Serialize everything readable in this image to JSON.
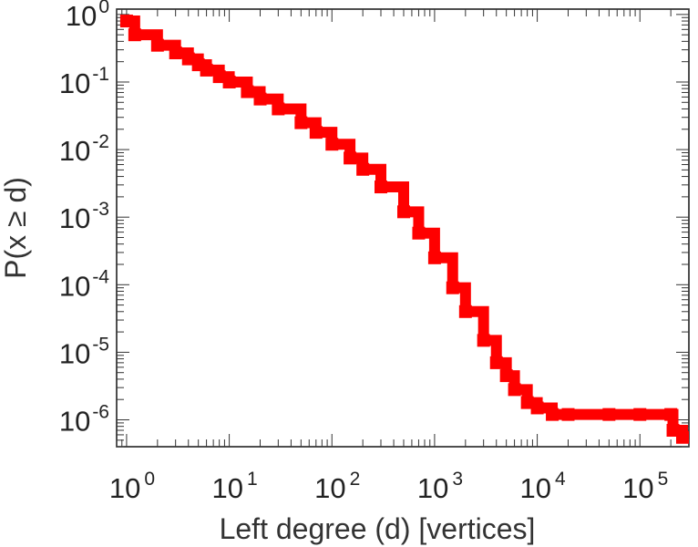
{
  "chart_data": {
    "type": "line",
    "xlabel": "Left degree (d) [vertices]",
    "ylabel": "P(x ≥ d)",
    "xscale": "log",
    "yscale": "log",
    "xlim": [
      0.8,
      300000
    ],
    "ylim": [
      4e-07,
      1.2
    ],
    "grid": false,
    "legend": "none",
    "line_color": "#ff0000",
    "marker": "square",
    "x_ticks": [
      {
        "base": "10",
        "exp": "0",
        "value": 1
      },
      {
        "base": "10",
        "exp": "1",
        "value": 10
      },
      {
        "base": "10",
        "exp": "2",
        "value": 100
      },
      {
        "base": "10",
        "exp": "3",
        "value": 1000
      },
      {
        "base": "10",
        "exp": "4",
        "value": 10000
      },
      {
        "base": "10",
        "exp": "5",
        "value": 100000
      }
    ],
    "y_ticks": [
      {
        "base": "10",
        "exp": "0",
        "value": 1
      },
      {
        "base": "10",
        "exp": "-1",
        "value": 0.1
      },
      {
        "base": "10",
        "exp": "-2",
        "value": 0.01
      },
      {
        "base": "10",
        "exp": "-3",
        "value": 0.001
      },
      {
        "base": "10",
        "exp": "-4",
        "value": 0.0001
      },
      {
        "base": "10",
        "exp": "-5",
        "value": 1e-05
      },
      {
        "base": "10",
        "exp": "-6",
        "value": 1e-06
      }
    ],
    "series": [
      {
        "x": [
          1,
          1.2,
          2,
          3,
          4,
          5,
          6,
          8,
          10,
          15,
          20,
          30,
          50,
          70,
          100,
          150,
          200,
          300,
          500,
          700,
          1000,
          1500,
          2000,
          3000,
          4000,
          5000,
          6000,
          8000,
          10000,
          14000,
          20000,
          50000,
          100000,
          200000,
          210000,
          260000
        ],
        "y": [
          0.8,
          0.5,
          0.35,
          0.27,
          0.22,
          0.18,
          0.15,
          0.12,
          0.1,
          0.072,
          0.056,
          0.04,
          0.025,
          0.018,
          0.012,
          0.0075,
          0.0051,
          0.0028,
          0.0012,
          0.00058,
          0.00025,
          9e-05,
          4e-05,
          1.5e-05,
          7e-06,
          4.5e-06,
          2.8e-06,
          1.8e-06,
          1.5e-06,
          1.2e-06,
          1.2e-06,
          1.2e-06,
          1.2e-06,
          1.2e-06,
          7e-07,
          5.5e-07
        ]
      }
    ]
  }
}
